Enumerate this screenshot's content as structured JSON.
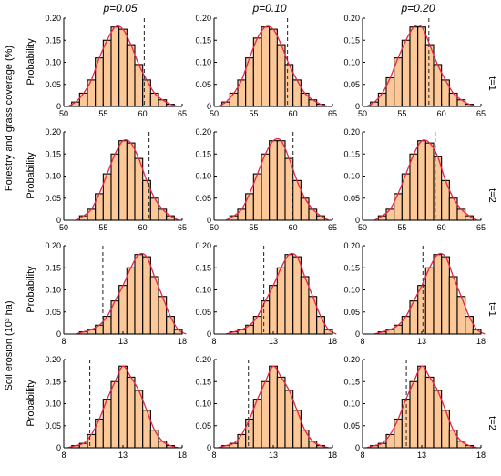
{
  "figure": {
    "column_titles": [
      "p=0.05",
      "p=0.10",
      "p=0.20"
    ],
    "row_group_labels": [
      "Forestry and grass coverage (%)",
      "Soil erosion (10³ ha)"
    ],
    "row_labels": [
      "t=1",
      "t=2",
      "t=1",
      "t=2"
    ],
    "ylabel": "Probability",
    "colors": {
      "bar_fill": "#fcc897",
      "bar_edge": "#000000",
      "curve": "#e8264a",
      "threshold_line": "#333333"
    }
  },
  "chart_data": [
    {
      "type": "bar",
      "row": 0,
      "col": 0,
      "xlim": [
        50,
        65
      ],
      "ylim": [
        0,
        0.2
      ],
      "xticks": [
        50,
        55,
        60,
        65
      ],
      "yticks": [
        0,
        0.05,
        0.1,
        0.15,
        0.2
      ],
      "bin_width": 1,
      "bins_start": [
        51,
        52,
        53,
        54,
        55,
        56,
        57,
        58,
        59,
        60,
        61,
        62,
        63
      ],
      "values": [
        0.01,
        0.03,
        0.06,
        0.11,
        0.15,
        0.18,
        0.175,
        0.14,
        0.095,
        0.06,
        0.03,
        0.015,
        0.005
      ],
      "dashed_x": 60.2
    },
    {
      "type": "bar",
      "row": 0,
      "col": 1,
      "xlim": [
        50,
        65
      ],
      "ylim": [
        0,
        0.2
      ],
      "xticks": [
        50,
        55,
        60,
        65
      ],
      "yticks": [
        0,
        0.05,
        0.1,
        0.15,
        0.2
      ],
      "bin_width": 1,
      "bins_start": [
        51,
        52,
        53,
        54,
        55,
        56,
        57,
        58,
        59,
        60,
        61,
        62,
        63
      ],
      "values": [
        0.01,
        0.03,
        0.06,
        0.11,
        0.155,
        0.18,
        0.175,
        0.14,
        0.095,
        0.06,
        0.03,
        0.015,
        0.005
      ],
      "dashed_x": 59.3
    },
    {
      "type": "bar",
      "row": 0,
      "col": 2,
      "xlim": [
        50,
        65
      ],
      "ylim": [
        0,
        0.2
      ],
      "xticks": [
        50,
        55,
        60,
        65
      ],
      "yticks": [
        0,
        0.05,
        0.1,
        0.15,
        0.2
      ],
      "bin_width": 1,
      "bins_start": [
        51,
        52,
        53,
        54,
        55,
        56,
        57,
        58,
        59,
        60,
        61,
        62,
        63
      ],
      "values": [
        0.01,
        0.03,
        0.065,
        0.11,
        0.15,
        0.18,
        0.18,
        0.14,
        0.095,
        0.06,
        0.03,
        0.015,
        0.005
      ],
      "dashed_x": 58.4
    },
    {
      "type": "bar",
      "row": 1,
      "col": 0,
      "xlim": [
        50,
        65
      ],
      "ylim": [
        0,
        0.2
      ],
      "xticks": [
        50,
        55,
        60,
        65
      ],
      "yticks": [
        0,
        0.05,
        0.1,
        0.15,
        0.2
      ],
      "bin_width": 1,
      "bins_start": [
        52,
        53,
        54,
        55,
        56,
        57,
        58,
        59,
        60,
        61,
        62,
        63
      ],
      "values": [
        0.01,
        0.025,
        0.06,
        0.105,
        0.15,
        0.18,
        0.175,
        0.14,
        0.09,
        0.05,
        0.025,
        0.01
      ],
      "dashed_x": 60.8
    },
    {
      "type": "bar",
      "row": 1,
      "col": 1,
      "xlim": [
        50,
        65
      ],
      "ylim": [
        0,
        0.2
      ],
      "xticks": [
        50,
        55,
        60,
        65
      ],
      "yticks": [
        0,
        0.05,
        0.1,
        0.15,
        0.2
      ],
      "bin_width": 1,
      "bins_start": [
        52,
        53,
        54,
        55,
        56,
        57,
        58,
        59,
        60,
        61,
        62,
        63
      ],
      "values": [
        0.01,
        0.025,
        0.06,
        0.105,
        0.15,
        0.18,
        0.18,
        0.14,
        0.09,
        0.05,
        0.025,
        0.01
      ],
      "dashed_x": 60.0
    },
    {
      "type": "bar",
      "row": 1,
      "col": 2,
      "xlim": [
        50,
        65
      ],
      "ylim": [
        0,
        0.2
      ],
      "xticks": [
        50,
        55,
        60,
        65
      ],
      "yticks": [
        0,
        0.05,
        0.1,
        0.15,
        0.2
      ],
      "bin_width": 1,
      "bins_start": [
        52,
        53,
        54,
        55,
        56,
        57,
        58,
        59,
        60,
        61,
        62,
        63
      ],
      "values": [
        0.01,
        0.025,
        0.06,
        0.105,
        0.15,
        0.18,
        0.175,
        0.145,
        0.09,
        0.05,
        0.025,
        0.01
      ],
      "dashed_x": 59.2
    },
    {
      "type": "bar",
      "row": 2,
      "col": 0,
      "xlim": [
        8,
        18
      ],
      "ylim": [
        0,
        0.2
      ],
      "xticks": [
        8,
        13,
        18
      ],
      "yticks": [
        0,
        0.05,
        0.1,
        0.15,
        0.2
      ],
      "bin_width": 0.667,
      "bins_start": [
        9.33,
        10.0,
        10.67,
        11.33,
        12.0,
        12.67,
        13.33,
        14.0,
        14.67,
        15.33,
        16.0,
        16.67,
        17.33
      ],
      "values": [
        0.005,
        0.01,
        0.02,
        0.04,
        0.075,
        0.11,
        0.15,
        0.18,
        0.175,
        0.13,
        0.085,
        0.04,
        0.01
      ],
      "dashed_x": 11.3
    },
    {
      "type": "bar",
      "row": 2,
      "col": 1,
      "xlim": [
        8,
        18
      ],
      "ylim": [
        0,
        0.2
      ],
      "xticks": [
        8,
        13,
        18
      ],
      "yticks": [
        0,
        0.05,
        0.1,
        0.15,
        0.2
      ],
      "bin_width": 0.667,
      "bins_start": [
        9.33,
        10.0,
        10.67,
        11.33,
        12.0,
        12.67,
        13.33,
        14.0,
        14.67,
        15.33,
        16.0,
        16.67,
        17.33
      ],
      "values": [
        0.005,
        0.01,
        0.02,
        0.04,
        0.075,
        0.11,
        0.15,
        0.18,
        0.175,
        0.13,
        0.085,
        0.04,
        0.01
      ],
      "dashed_x": 12.2
    },
    {
      "type": "bar",
      "row": 2,
      "col": 2,
      "xlim": [
        8,
        18
      ],
      "ylim": [
        0,
        0.2
      ],
      "xticks": [
        8,
        13,
        18
      ],
      "yticks": [
        0,
        0.05,
        0.1,
        0.15,
        0.2
      ],
      "bin_width": 0.667,
      "bins_start": [
        9.33,
        10.0,
        10.67,
        11.33,
        12.0,
        12.67,
        13.33,
        14.0,
        14.67,
        15.33,
        16.0,
        16.67,
        17.33
      ],
      "values": [
        0.005,
        0.01,
        0.02,
        0.04,
        0.075,
        0.11,
        0.15,
        0.18,
        0.175,
        0.13,
        0.085,
        0.04,
        0.01
      ],
      "dashed_x": 13.1
    },
    {
      "type": "bar",
      "row": 3,
      "col": 0,
      "xlim": [
        8,
        18
      ],
      "ylim": [
        0,
        0.2
      ],
      "xticks": [
        8,
        13,
        18
      ],
      "yticks": [
        0,
        0.05,
        0.1,
        0.15,
        0.2
      ],
      "bin_width": 0.667,
      "bins_start": [
        8.67,
        9.33,
        10.0,
        10.67,
        11.33,
        12.0,
        12.67,
        13.33,
        14.0,
        14.67,
        15.33,
        16.0,
        16.67
      ],
      "values": [
        0.005,
        0.01,
        0.03,
        0.065,
        0.11,
        0.15,
        0.185,
        0.16,
        0.13,
        0.085,
        0.04,
        0.015,
        0.005
      ],
      "dashed_x": 10.2
    },
    {
      "type": "bar",
      "row": 3,
      "col": 1,
      "xlim": [
        8,
        18
      ],
      "ylim": [
        0,
        0.2
      ],
      "xticks": [
        8,
        13,
        18
      ],
      "yticks": [
        0,
        0.05,
        0.1,
        0.15,
        0.2
      ],
      "bin_width": 0.667,
      "bins_start": [
        8.67,
        9.33,
        10.0,
        10.67,
        11.33,
        12.0,
        12.67,
        13.33,
        14.0,
        14.67,
        15.33,
        16.0,
        16.67
      ],
      "values": [
        0.005,
        0.01,
        0.03,
        0.065,
        0.11,
        0.15,
        0.185,
        0.16,
        0.13,
        0.085,
        0.04,
        0.015,
        0.005
      ],
      "dashed_x": 10.9
    },
    {
      "type": "bar",
      "row": 3,
      "col": 2,
      "xlim": [
        8,
        18
      ],
      "ylim": [
        0,
        0.2
      ],
      "xticks": [
        8,
        13,
        18
      ],
      "yticks": [
        0,
        0.05,
        0.1,
        0.15,
        0.2
      ],
      "bin_width": 0.667,
      "bins_start": [
        8.67,
        9.33,
        10.0,
        10.67,
        11.33,
        12.0,
        12.67,
        13.33,
        14.0,
        14.67,
        15.33,
        16.0,
        16.67
      ],
      "values": [
        0.005,
        0.01,
        0.03,
        0.065,
        0.11,
        0.15,
        0.185,
        0.16,
        0.13,
        0.085,
        0.04,
        0.015,
        0.005
      ],
      "dashed_x": 11.7
    }
  ]
}
